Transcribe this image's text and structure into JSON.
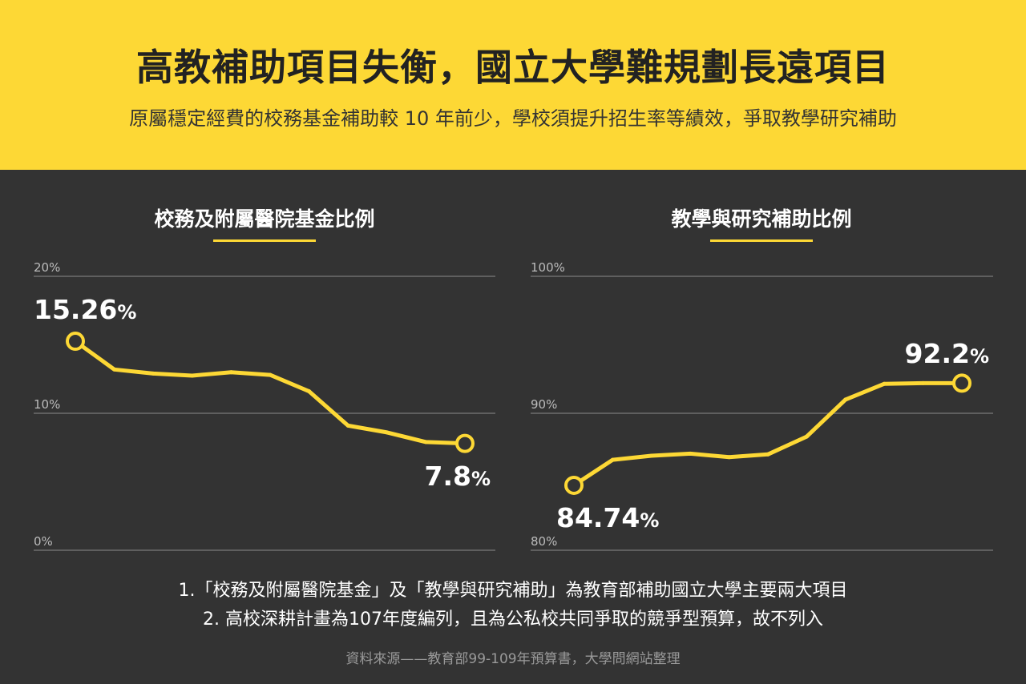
{
  "header": {
    "title": "高教補助項目失衡，國立大學難規劃長遠項目",
    "subtitle": "原屬穩定經費的校務基金補助較 10 年前少，學校須提升招生率等績效，爭取教學研究補助"
  },
  "colors": {
    "accent": "#fdd835",
    "background": "#333333",
    "grid": "#6e6e6e"
  },
  "chart_data": [
    {
      "type": "line",
      "title": "校務及附屬醫院基金比例",
      "ylim": [
        0,
        20
      ],
      "yticks": [
        {
          "value": 0,
          "label": "0%"
        },
        {
          "value": 10,
          "label": "10%"
        },
        {
          "value": 20,
          "label": "20%"
        }
      ],
      "grid": true,
      "x_count": 11,
      "values": [
        15.26,
        13.2,
        12.9,
        12.75,
        13.0,
        12.8,
        11.6,
        9.1,
        8.6,
        7.9,
        7.8
      ],
      "start_label": "15.26%",
      "end_label": "7.8%"
    },
    {
      "type": "line",
      "title": "教學與研究補助比例",
      "ylim": [
        80,
        100
      ],
      "yticks": [
        {
          "value": 80,
          "label": "80%"
        },
        {
          "value": 90,
          "label": "90%"
        },
        {
          "value": 100,
          "label": "100%"
        }
      ],
      "grid": true,
      "x_count": 11,
      "values": [
        84.74,
        86.6,
        86.9,
        87.05,
        86.8,
        87.0,
        88.3,
        91.0,
        92.15,
        92.2,
        92.2
      ],
      "start_label": "84.74%",
      "end_label": "92.2%"
    }
  ],
  "footnotes": {
    "line1": "1.「校務及附屬醫院基金」及「教學與研究補助」為教育部補助國立大學主要兩大項目",
    "line2": "2. 高校深耕計畫為107年度編列，且為公私校共同爭取的競爭型預算，故不列入"
  },
  "source": "資料來源——教育部99-109年預算書，大學問網站整理"
}
